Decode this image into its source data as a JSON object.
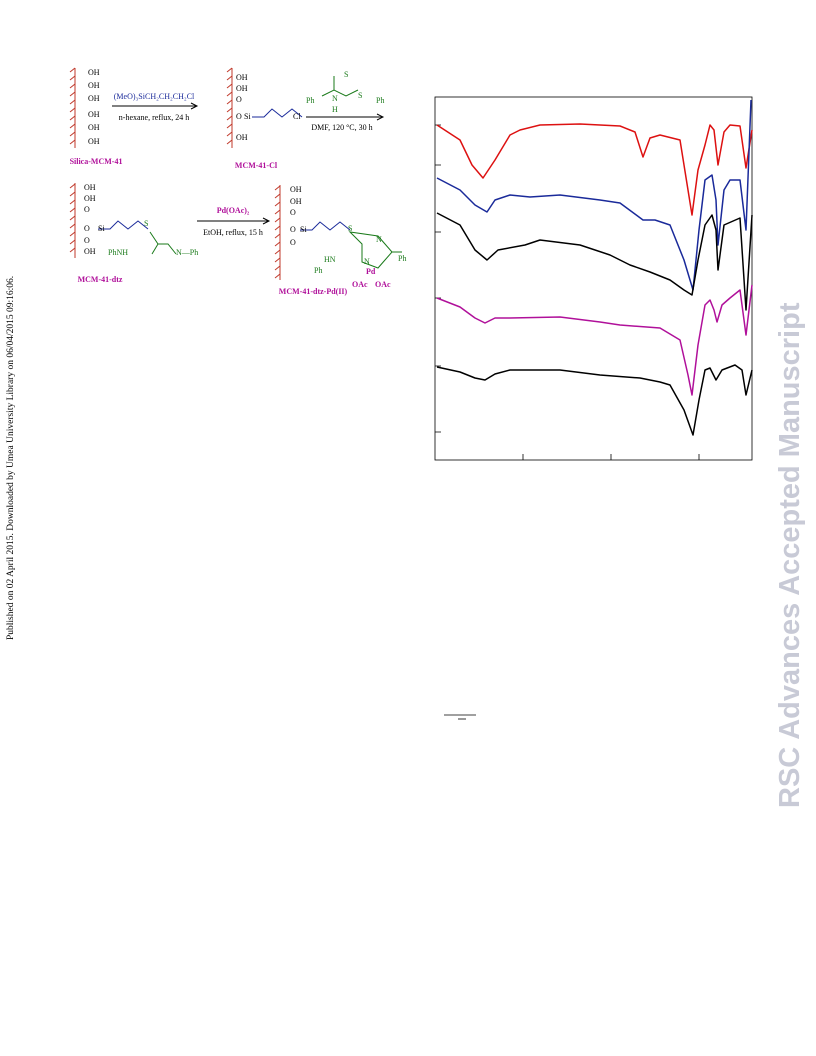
{
  "side_note": "Published on 02 April 2015. Downloaded by Umea University Library on 06/04/2015 09:16:06.",
  "watermark": "RSC Advances Accepted Manuscript",
  "scheme": {
    "surface_groups": [
      "OH",
      "OH",
      "OH",
      "OH",
      "OH",
      "OH"
    ],
    "step1": {
      "reagent": "(MeO)₃SiCH₂CH₂CH₂Cl",
      "conditions": "n-hexane, reflux, 24 h"
    },
    "step2": {
      "reagent_atoms": [
        "S",
        "Ph",
        "N",
        "H",
        "S",
        "Ph"
      ],
      "conditions": "DMF, 120 °C, 30 h"
    },
    "step3": {
      "reagent": "Pd(OAc)₂",
      "conditions": "EtOH, reflux, 15 h"
    },
    "fragments": {
      "si": "Si",
      "o": "O",
      "cl": "Cl",
      "s": "S",
      "phnh": "PhNH",
      "nph": "N—Ph",
      "ph": "Ph",
      "n": "N",
      "hn": "HN",
      "pd": "Pd",
      "oac": "OAc"
    },
    "compounds": [
      "Silica-MCM-41",
      "MCM-41-Cl",
      "MCM-41-dtz",
      "MCM-41-dtz-Pd(II)"
    ]
  }
}
